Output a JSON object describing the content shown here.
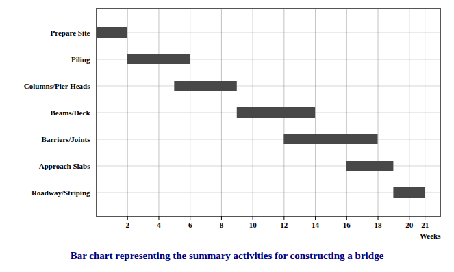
{
  "chart_data": {
    "type": "gantt",
    "orientation": "horizontal",
    "title": "Bar chart representing the summary activities for constructing a bridge",
    "title_color": "#000080",
    "xlabel": "Weeks",
    "categories": [
      "Prepare Site",
      "Piling",
      "Columns/Pier Heads",
      "Beams/Deck",
      "Barriers/Joints",
      "Approach Slabs",
      "Roadway/Striping"
    ],
    "starts": [
      0,
      2,
      5,
      9,
      12,
      16,
      19
    ],
    "values": [
      2,
      4,
      4,
      5,
      6,
      3,
      2
    ],
    "color": "#484848",
    "xlim": [
      0,
      22
    ],
    "xticks": [
      2,
      4,
      6,
      8,
      10,
      12,
      14,
      16,
      18,
      20,
      21
    ],
    "grid": true
  }
}
